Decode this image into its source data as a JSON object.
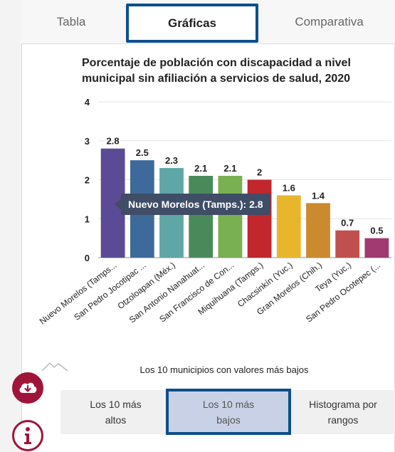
{
  "tabs": [
    {
      "label": "Tabla"
    },
    {
      "label": "Gráficas"
    },
    {
      "label": "Comparativa"
    }
  ],
  "chart_data": {
    "type": "bar",
    "title": "Porcentaje de población con discapacidad a nivel municipal sin afiliación a servicios de salud, 2020",
    "categories": [
      "Nuevo Morelos (Tamps...",
      "San Pedro Jocotipac ...",
      "Otzoloapan (Méx.)",
      "San Antonio Nanahuat...",
      "San Francisco de Con...",
      "Miquihuana (Tamps.)",
      "Chacsinkín (Yuc.)",
      "Gran Morelos (Chih.)",
      "Teya (Yuc.)",
      "San Pedro Ocotepec (..."
    ],
    "values": [
      2.8,
      2.5,
      2.3,
      2.1,
      2.1,
      2,
      1.6,
      1.4,
      0.7,
      0.5
    ],
    "value_labels": [
      "2.8",
      "2.5",
      "2.3",
      "2.1",
      "2.1",
      "2",
      "1.6",
      "1.4",
      "0.7",
      "0.5"
    ],
    "colors": [
      "#5b4a96",
      "#3e6a9b",
      "#5fa6a6",
      "#4a8a5a",
      "#79b050",
      "#c1272d",
      "#e8b62c",
      "#cc8a2e",
      "#c0504d",
      "#a03a70"
    ],
    "yticks": [
      "0",
      "1",
      "2",
      "3",
      "4"
    ],
    "ylim": [
      0,
      4
    ],
    "grid": true
  },
  "tooltip": {
    "text": "Nuevo Morelos (Tamps.): 2.8"
  },
  "footnote": "Los 10 municipios con valores más bajos",
  "options": [
    {
      "label": "Los 10 más altos"
    },
    {
      "label": "Los 10 más bajos"
    },
    {
      "label": "Histograma por rangos"
    }
  ],
  "icons": {
    "download": "cloud-download-icon",
    "info": "info-icon",
    "credits": "mountain-logo-icon"
  }
}
